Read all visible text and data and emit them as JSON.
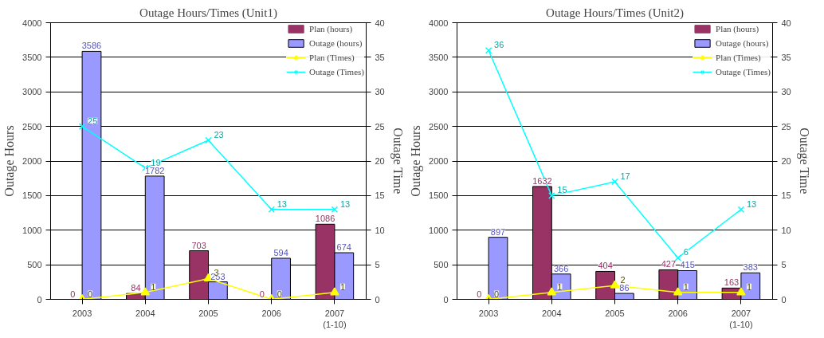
{
  "chart_data": [
    {
      "type": "bar",
      "title": "Outage Hours/Times (Unit1)",
      "xlabel": null,
      "ylabel": "Outage Hours",
      "y2label": "Outage Time",
      "categories": [
        "2003",
        "2004",
        "2005",
        "2006",
        "2007\n(1-10)"
      ],
      "ylim": [
        0,
        4000
      ],
      "yticks": [
        0,
        500,
        1000,
        1500,
        2000,
        2500,
        3000,
        3500,
        4000
      ],
      "y2lim": [
        0,
        40
      ],
      "y2ticks": [
        0,
        5,
        10,
        15,
        20,
        25,
        30,
        35,
        40
      ],
      "grid": "y",
      "legend": "top right",
      "data_labels": true,
      "series": [
        {
          "name": "Plan (hours)",
          "type": "bar",
          "color": "#993366",
          "values": [
            0,
            84,
            703,
            0,
            1086
          ]
        },
        {
          "name": "Outage (hours)",
          "type": "bar",
          "color": "#9999ff",
          "values": [
            3586,
            1782,
            253,
            594,
            674
          ]
        },
        {
          "name": "Plan (Times)",
          "type": "line",
          "axis": "y2",
          "marker": "triangle",
          "color": "#ffff00",
          "values": [
            0,
            1,
            3,
            0,
            1
          ]
        },
        {
          "name": "Outage (Times)",
          "type": "line",
          "axis": "y2",
          "marker": "cross",
          "color": "#00ffff",
          "values": [
            25,
            19,
            23,
            13,
            13
          ]
        }
      ]
    },
    {
      "type": "bar",
      "title": "Outage Hours/Times (Unit2)",
      "ylabel": "Outage Hours",
      "y2label": "Outage Time",
      "categories": [
        "2003",
        "2004",
        "2005",
        "2006",
        "2007\n(1-10)"
      ],
      "ylim": [
        0,
        4000
      ],
      "yticks": [
        0,
        500,
        1000,
        1500,
        2000,
        2500,
        3000,
        3500,
        4000
      ],
      "y2lim": [
        0,
        40
      ],
      "y2ticks": [
        0,
        5,
        10,
        15,
        20,
        25,
        30,
        35,
        40
      ],
      "grid": "y",
      "legend": "top right",
      "data_labels": true,
      "series": [
        {
          "name": "Plan (hours)",
          "type": "bar",
          "color": "#993366",
          "values": [
            0,
            1632,
            404,
            427,
            163
          ]
        },
        {
          "name": "Outage (hours)",
          "type": "bar",
          "color": "#9999ff",
          "values": [
            897,
            366,
            86,
            415,
            383
          ]
        },
        {
          "name": "Plan (Times)",
          "type": "line",
          "axis": "y2",
          "marker": "triangle",
          "color": "#ffff00",
          "values": [
            0,
            1,
            2,
            1,
            1
          ]
        },
        {
          "name": "Outage (Times)",
          "type": "line",
          "axis": "y2",
          "marker": "cross",
          "color": "#00ffff",
          "values": [
            36,
            15,
            17,
            6,
            13
          ]
        }
      ]
    }
  ]
}
